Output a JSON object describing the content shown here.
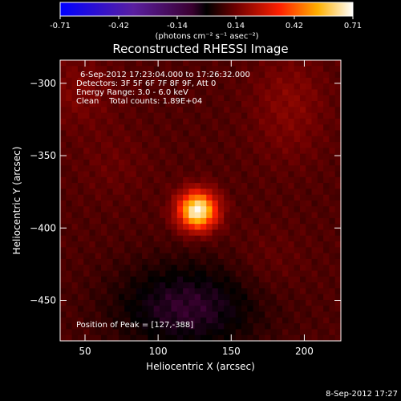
{
  "chart_data": {
    "type": "heatmap",
    "title": "Reconstructed RHESSI Image",
    "xlabel": "Heliocentric X (arcsec)",
    "ylabel": "Heliocentric Y (arcsec)",
    "xlim": [
      33,
      225
    ],
    "ylim": [
      -478,
      -284
    ],
    "x_ticks": [
      50,
      100,
      150,
      200
    ],
    "y_ticks": [
      -300,
      -350,
      -400,
      -450
    ],
    "colorbar": {
      "range": [
        -0.71,
        0.71
      ],
      "ticks": [
        "-0.71",
        "-0.42",
        "-0.14",
        "0.14",
        "0.42",
        "0.71"
      ],
      "unit_label": "(photons cm⁻² s⁻¹ asec⁻²)"
    },
    "annotations": [
      "6-Sep-2012 17:23:04.000 to 17:26:32.000",
      "Detectors: 3F 5F 6F 7F 8F 9F, Att 0",
      "Energy Range: 3.0 - 6.0 keV",
      "Clean    Total counts: 1.89E+04"
    ],
    "peak_label": "Position of Peak = [127,-388]",
    "peak": {
      "x": 127,
      "y": -388,
      "value": 0.71
    },
    "background_value": 0.1,
    "faint_sources": [
      {
        "x": 45,
        "y": -305,
        "value": 0.16
      },
      {
        "x": 190,
        "y": -305,
        "value": 0.16
      },
      {
        "x": 190,
        "y": -335,
        "value": 0.14
      },
      {
        "x": 70,
        "y": -355,
        "value": 0.13
      },
      {
        "x": 175,
        "y": -425,
        "value": 0.13
      }
    ],
    "negative_region": {
      "x": 120,
      "y": -455,
      "value": -0.06
    },
    "grid": false
  },
  "footer": {
    "timestamp": "8-Sep-2012 17:27"
  }
}
